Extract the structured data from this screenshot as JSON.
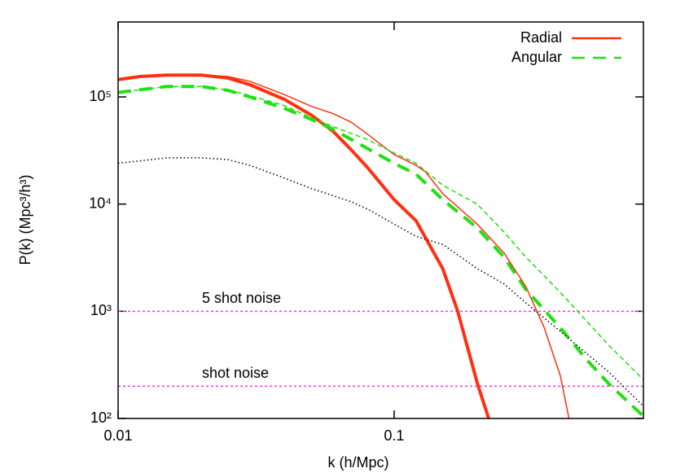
{
  "chart_data": {
    "type": "line",
    "xlabel": "k (h/Mpc)",
    "ylabel": "P(k) (Mpc³/h³)",
    "xscale": "log",
    "yscale": "log",
    "xlim": [
      0.01,
      0.8
    ],
    "ylim": [
      100,
      500000
    ],
    "xticks": [
      0.01,
      0.1
    ],
    "yticks": [
      {
        "value": 100,
        "label": "10²"
      },
      {
        "value": 1000,
        "label": "10³"
      },
      {
        "value": 10000,
        "label": "10⁴"
      },
      {
        "value": 100000,
        "label": "10⁵"
      }
    ],
    "legend": "top-right",
    "series": [
      {
        "name": "Radial",
        "color": "#ff3010",
        "style": "solid",
        "width": 4,
        "x": [
          0.01,
          0.012,
          0.015,
          0.02,
          0.025,
          0.03,
          0.04,
          0.05,
          0.06,
          0.07,
          0.08,
          0.1,
          0.12,
          0.15,
          0.17,
          0.2,
          0.22
        ],
        "values": [
          145000,
          155000,
          160000,
          160000,
          150000,
          130000,
          95000,
          68000,
          48000,
          32000,
          22000,
          11000,
          7000,
          2500,
          1000,
          215,
          100
        ]
      },
      {
        "name": "Angular",
        "color": "#20e010",
        "style": "dashed",
        "width": 4,
        "x": [
          0.01,
          0.015,
          0.02,
          0.025,
          0.03,
          0.04,
          0.05,
          0.06,
          0.07,
          0.08,
          0.1,
          0.12,
          0.15,
          0.2,
          0.25,
          0.3,
          0.4,
          0.5,
          0.6,
          0.8
        ],
        "values": [
          110000,
          125000,
          125000,
          115000,
          100000,
          78000,
          62000,
          50000,
          40000,
          33000,
          24000,
          19000,
          11000,
          6000,
          3200,
          1600,
          700,
          350,
          210,
          105
        ]
      },
      {
        "color": "#ff3010",
        "style": "solid",
        "width": 1.5,
        "x": [
          0.01,
          0.015,
          0.02,
          0.025,
          0.03,
          0.04,
          0.05,
          0.06,
          0.07,
          0.08,
          0.1,
          0.12,
          0.13,
          0.15,
          0.2,
          0.25,
          0.3,
          0.35,
          0.4,
          0.43
        ],
        "values": [
          145000,
          162000,
          160000,
          155000,
          140000,
          105000,
          82000,
          70000,
          58000,
          45000,
          29000,
          23000,
          20000,
          12500,
          6500,
          3500,
          1700,
          700,
          250,
          100
        ]
      },
      {
        "color": "#20e010",
        "style": "dashed",
        "width": 1.5,
        "x": [
          0.01,
          0.015,
          0.02,
          0.025,
          0.03,
          0.04,
          0.05,
          0.06,
          0.08,
          0.1,
          0.12,
          0.15,
          0.2,
          0.25,
          0.3,
          0.4,
          0.5,
          0.6,
          0.8
        ],
        "values": [
          110000,
          125000,
          125000,
          116000,
          103000,
          83000,
          64000,
          53000,
          40000,
          30000,
          24000,
          15000,
          10000,
          5500,
          3200,
          1500,
          800,
          480,
          230
        ]
      },
      {
        "color": "#000000",
        "style": "dotted",
        "width": 1.5,
        "x": [
          0.01,
          0.015,
          0.02,
          0.025,
          0.03,
          0.04,
          0.05,
          0.06,
          0.07,
          0.08,
          0.1,
          0.12,
          0.15,
          0.2,
          0.25,
          0.3,
          0.4,
          0.5,
          0.6,
          0.8
        ],
        "values": [
          24000,
          27000,
          27000,
          26000,
          23000,
          17500,
          14000,
          12000,
          10500,
          9000,
          6500,
          5000,
          4200,
          2500,
          1800,
          1200,
          650,
          400,
          270,
          130
        ]
      }
    ],
    "hlines": [
      {
        "label": "5 shot noise",
        "value": 1000,
        "color": "#ff30ff"
      },
      {
        "label": "shot noise",
        "value": 200,
        "color": "#ff30ff"
      }
    ]
  }
}
